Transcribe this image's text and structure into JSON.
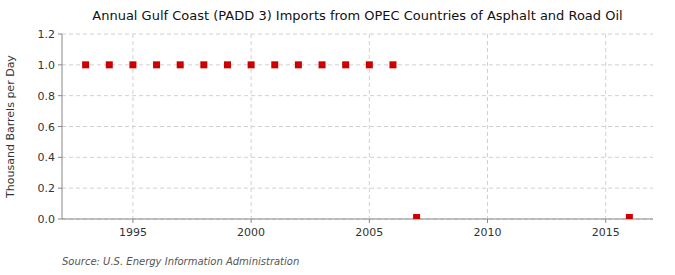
{
  "chart_data": {
    "type": "scatter",
    "title": "Annual Gulf Coast (PADD 3) Imports from OPEC Countries of Asphalt and Road Oil",
    "ylabel": "Thousand Barrels per Day",
    "source": "Source: U.S. Energy Information Administration",
    "x": [
      1993,
      1994,
      1995,
      1996,
      1997,
      1998,
      1999,
      2000,
      2001,
      2002,
      2003,
      2004,
      2005,
      2006,
      2007,
      2016
    ],
    "values": [
      1.0,
      1.0,
      1.0,
      1.0,
      1.0,
      1.0,
      1.0,
      1.0,
      1.0,
      1.0,
      1.0,
      1.0,
      1.0,
      1.0,
      0.01,
      0.01
    ],
    "color": "#cc0000",
    "marker": "square",
    "xlim": [
      1992,
      2017
    ],
    "ylim": [
      0.0,
      1.2
    ],
    "xticks": [
      1995,
      2000,
      2005,
      2010,
      2015
    ],
    "yticks": [
      {
        "value": 0,
        "label": "0.0"
      },
      0.2,
      0.4,
      0.6,
      0.8,
      {
        "value": 1,
        "label": "1.0"
      },
      1.2
    ],
    "grid": true
  }
}
